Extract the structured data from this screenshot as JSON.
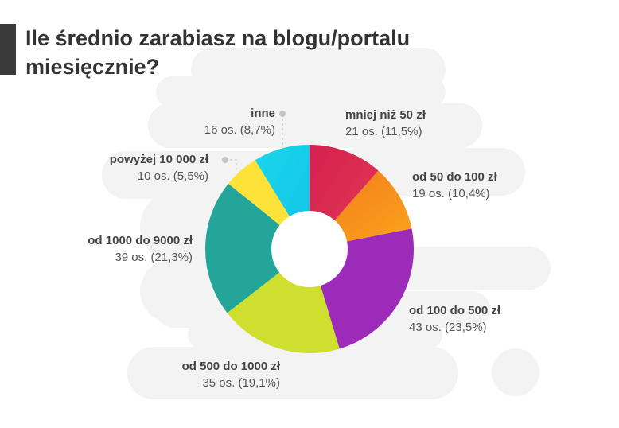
{
  "title": "Ile średnio zarabiasz na blogu/portalu miesięcznie?",
  "chart_data": {
    "type": "pie",
    "variant": "donut",
    "title": "Ile średnio zarabiasz na blogu/portalu miesięcznie?",
    "unit": "os.",
    "slices": [
      {
        "label": "mniej niż 50 zł",
        "value": 21,
        "percent": "11,5%",
        "value_text": "21 os. (11,5%)",
        "color": "#d4204f",
        "color2": "#e23a52"
      },
      {
        "label": "od 50 do 100 zł",
        "value": 19,
        "percent": "10,4%",
        "value_text": "19 os. (10,4%)",
        "color": "#f0791c",
        "color2": "#fca51c"
      },
      {
        "label": "od 100 do 500 zł",
        "value": 43,
        "percent": "23,5%",
        "value_text": "43 os. (23,5%)",
        "color": "#9b2bb8",
        "color2": "#9b2bb8"
      },
      {
        "label": "od 500 do 1000 zł",
        "value": 35,
        "percent": "19,1%",
        "value_text": "35 os. (19,1%)",
        "color": "#cfdf2e",
        "color2": "#cfdf2e"
      },
      {
        "label": "od 1000 do 9000 zł",
        "value": 39,
        "percent": "21,3%",
        "value_text": "39 os. (21,3%)",
        "color": "#23a699",
        "color2": "#23a699"
      },
      {
        "label": "powyżej 10 000 zł",
        "value": 10,
        "percent": "5,5%",
        "value_text": "10 os. (5,5%)",
        "color": "#fde23a",
        "color2": "#fde23a"
      },
      {
        "label": "inne",
        "value": 16,
        "percent": "8,7%",
        "value_text": "16 os. (8,7%)",
        "color": "#1ad6ea",
        "color2": "#11c3e8"
      }
    ]
  }
}
